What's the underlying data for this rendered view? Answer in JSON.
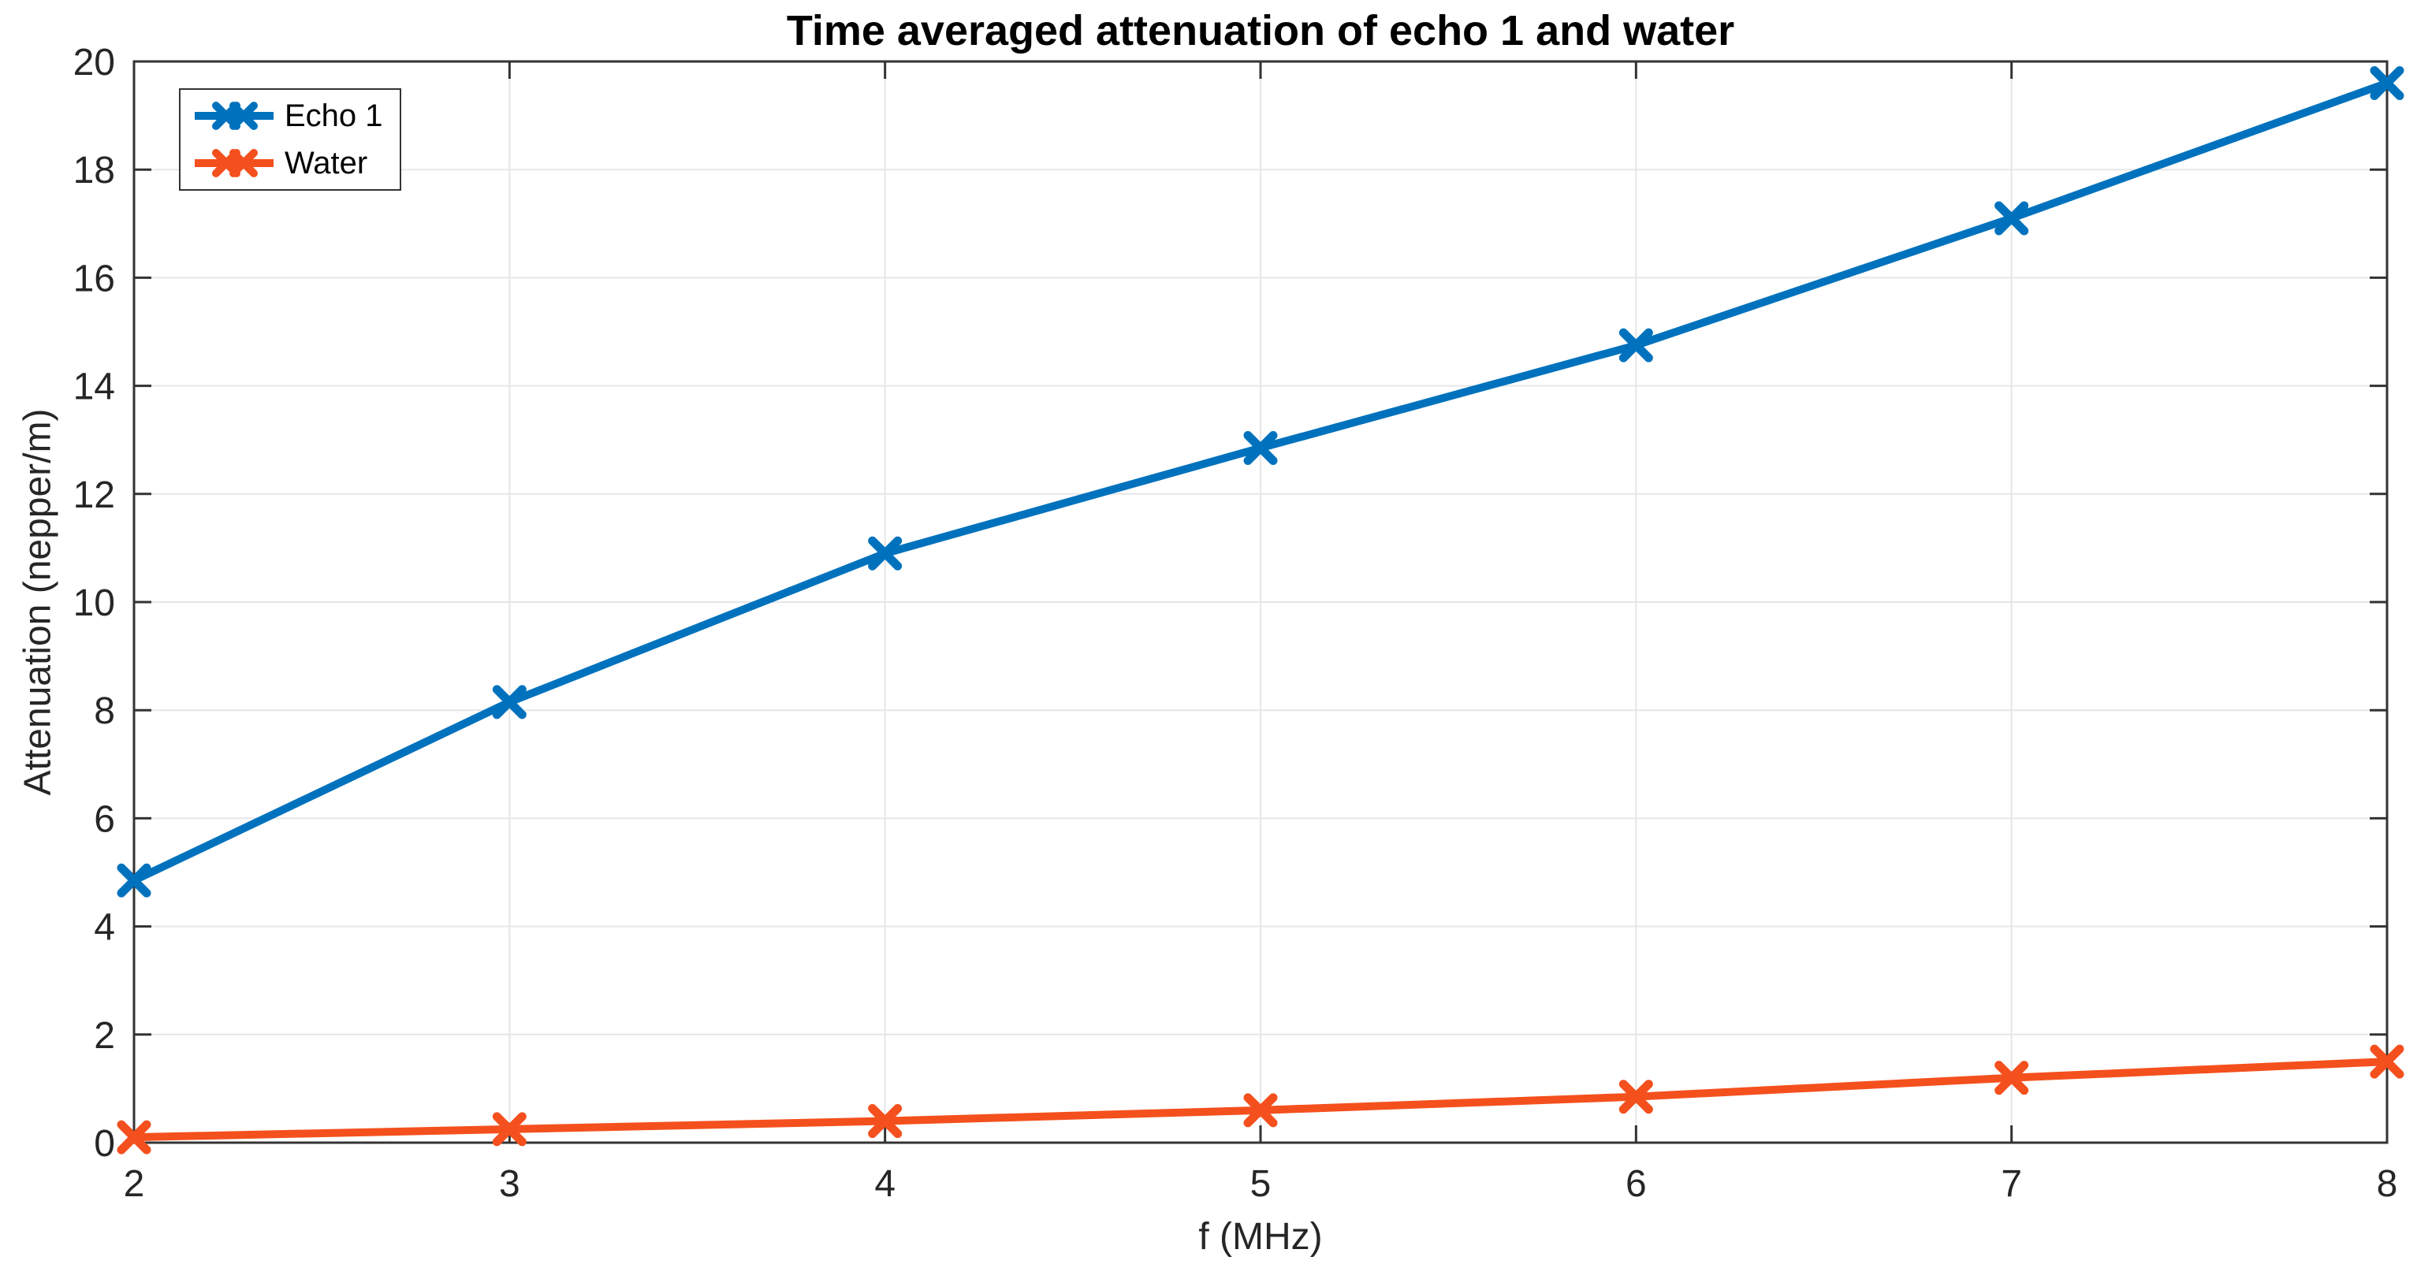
{
  "chart_data": {
    "type": "line",
    "title": "Time averaged attenuation of echo 1 and water",
    "xlabel": "f (MHz)",
    "ylabel": "Attenuation (nepper/m)",
    "x": [
      2,
      3,
      4,
      5,
      6,
      7,
      8
    ],
    "series": [
      {
        "name": "Echo 1",
        "color": "#0072BD",
        "values": [
          4.85,
          8.15,
          10.9,
          12.85,
          14.75,
          17.1,
          19.6
        ]
      },
      {
        "name": "Water",
        "color": "#F4501E",
        "values": [
          0.1,
          0.25,
          0.4,
          0.6,
          0.85,
          1.2,
          1.5
        ]
      }
    ],
    "xlim": [
      2,
      8
    ],
    "ylim": [
      0,
      20
    ],
    "xticks": [
      "2",
      "3",
      "4",
      "5",
      "6",
      "7",
      "8"
    ],
    "yticks": [
      "0",
      "2",
      "4",
      "6",
      "8",
      "10",
      "12",
      "14",
      "16",
      "18",
      "20"
    ],
    "marker": "x",
    "grid": true,
    "legend_position": "top-left",
    "colors": {
      "axis": "#333333",
      "grid": "#E6E6E6",
      "background": "#FFFFFF",
      "title_text": "#000000"
    }
  }
}
